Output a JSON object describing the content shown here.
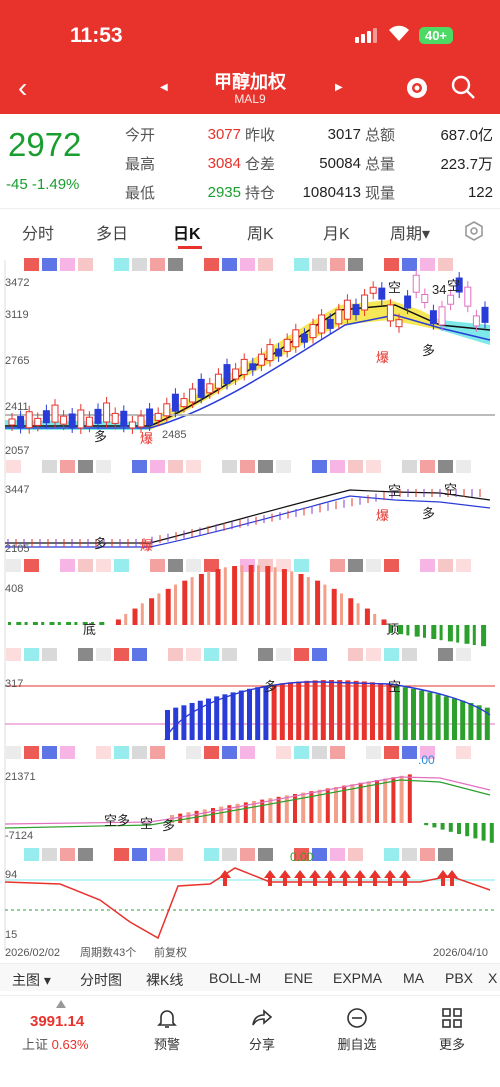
{
  "status": {
    "time": "11:53",
    "battery": "40+"
  },
  "nav": {
    "title": "甲醇加权",
    "subtitle": "MAL9",
    "back": "‹"
  },
  "quote": {
    "price": "2972",
    "change": "-45",
    "pct": "-1.49%",
    "rows": [
      {
        "l1": "今开",
        "v1": "3077",
        "l2": "昨收",
        "v2": "3017",
        "l3": "总额",
        "v3": "687.0亿"
      },
      {
        "l1": "最高",
        "v1": "3084",
        "l2": "仓差",
        "v2": "50084",
        "l3": "总量",
        "v3": "223.7万"
      },
      {
        "l1": "最低",
        "v1": "2935",
        "l2": "持仓",
        "v2": "1080413",
        "l3": "现量",
        "v3": "122"
      }
    ]
  },
  "tabs": [
    "分时",
    "多日",
    "日K",
    "周K",
    "月K",
    "周期▾"
  ],
  "chart": {
    "ylabels": [
      "3472",
      "3119",
      "2765",
      "2411",
      "2057"
    ],
    "markers": {
      "kong": "空",
      "duo": "多",
      "bao": "爆",
      "low": "2485",
      "high": "34"
    },
    "p2": {
      "top": "3447",
      "bottom": "2105"
    },
    "p3": {
      "top": "408",
      "di": "底",
      "ding": "顶"
    },
    "p4": {
      "top": "317"
    },
    "p5": {
      "top": "21371",
      "bot": "-7124",
      "lbl": ".00"
    },
    "p6": {
      "top": "94",
      "bot": "15",
      "lbl": "0.00"
    },
    "date_start": "2026/02/02",
    "count": "周期数43个",
    "fq": "前复权",
    "date_end": "2026/04/10"
  },
  "indicators": [
    "主图 ▾",
    "分时图",
    "裸K线",
    "BOLL-M",
    "ENE",
    "EXPMA",
    "MA",
    "PBX",
    "X"
  ],
  "index": {
    "value": "3991.14",
    "name": "上证",
    "pct": "0.63%"
  },
  "tools": [
    "预警",
    "分享",
    "删自选",
    "更多"
  ],
  "colors": {
    "red": "#e8322c",
    "green": "#1a9e2f"
  }
}
